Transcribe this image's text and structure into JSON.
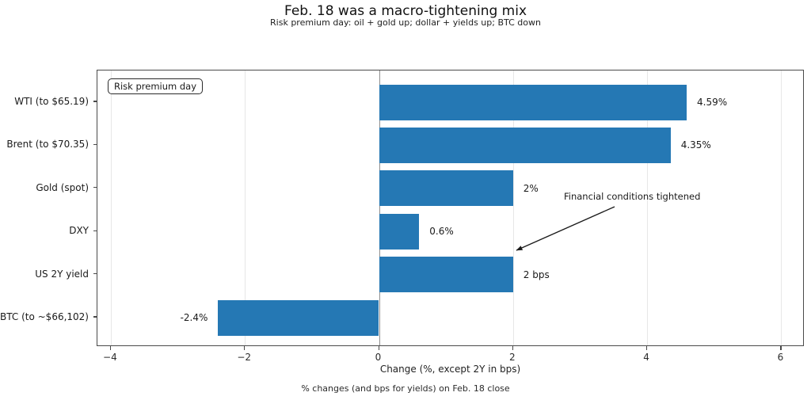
{
  "chart_data": {
    "type": "bar",
    "orientation": "horizontal",
    "title": "Feb. 18 was a macro-tightening mix",
    "subtitle": "Risk premium day: oil + gold up; dollar + yields up; BTC down",
    "categories": [
      "WTI (to $65.19)",
      "Brent (to $70.35)",
      "Gold (spot)",
      "DXY",
      "US 2Y yield",
      "BTC (to ~$66,102)"
    ],
    "values": [
      4.59,
      4.35,
      2,
      0.6,
      2,
      -2.4
    ],
    "value_labels": [
      "4.59%",
      "4.35%",
      "2%",
      "0.6%",
      "2 bps",
      "-2.4%"
    ],
    "xlabel": "Change (%, except 2Y in bps)",
    "xticks": [
      -4,
      -2,
      0,
      2,
      4,
      6
    ],
    "xtick_labels": [
      "−4",
      "−2",
      "0",
      "2",
      "4",
      "6"
    ],
    "xlim": [
      -4.2,
      6.35
    ],
    "grid": true,
    "zero_line": true,
    "bar_color": "#2578b4",
    "legend_label": "Risk premium day",
    "legend_position": "top-left",
    "annotation": "Financial conditions tightened",
    "annotation_target": "US 2Y yield",
    "footer": "% changes (and bps for yields) on Feb. 18 close"
  }
}
